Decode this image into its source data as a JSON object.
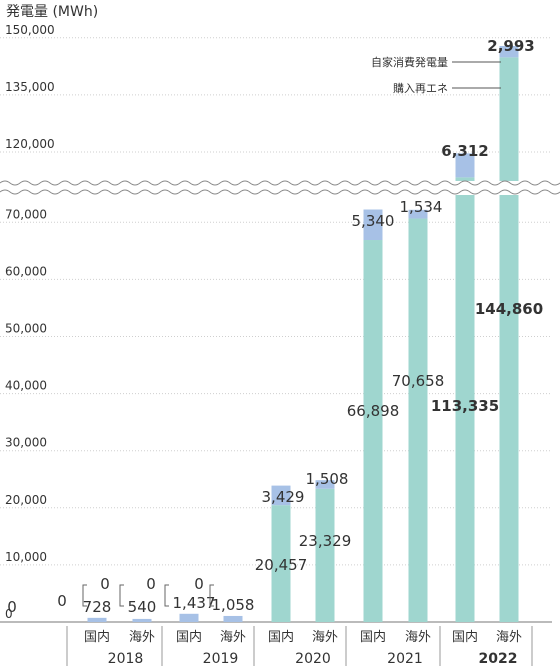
{
  "chart_data": {
    "type": "bar",
    "stacked": true,
    "broken_y_axis": true,
    "ylabel": "発電量 (MWh)",
    "y_ticks": [
      "0",
      "10,000",
      "20,000",
      "30,000",
      "40,000",
      "50,000",
      "60,000",
      "70,000",
      "120,000",
      "135,000",
      "150,000"
    ],
    "colors": {
      "purchased": "#9fd6cf",
      "self": "#a7c1e6"
    },
    "legend": [
      {
        "key": "self",
        "label": "自家消費発電量"
      },
      {
        "key": "purchased",
        "label": "購入再エネ"
      }
    ],
    "categories": [
      {
        "year": "2018",
        "sub": "国内",
        "purchased": 0,
        "self": 728,
        "purchased_label": "0",
        "self_label": "728",
        "bold": false
      },
      {
        "year": "2018",
        "sub": "海外",
        "purchased": 0,
        "self": 540,
        "purchased_label": "0",
        "self_label": "540",
        "bold": false
      },
      {
        "year": "2019",
        "sub": "国内",
        "purchased": 0,
        "self": 1437,
        "purchased_label": "0",
        "self_label": "1,437",
        "bold": false
      },
      {
        "year": "2019",
        "sub": "海外",
        "purchased": 0,
        "self": 1058,
        "purchased_label": "",
        "self_label": "1,058",
        "bold": false
      },
      {
        "year": "2020",
        "sub": "国内",
        "purchased": 20457,
        "self": 3429,
        "purchased_label": "20,457",
        "self_label": "3,429",
        "bold": false
      },
      {
        "year": "2020",
        "sub": "海外",
        "purchased": 23329,
        "self": 1508,
        "purchased_label": "23,329",
        "self_label": "1,508",
        "bold": false
      },
      {
        "year": "2021",
        "sub": "国内",
        "purchased": 66898,
        "self": 5340,
        "purchased_label": "66,898",
        "self_label": "5,340",
        "bold": false
      },
      {
        "year": "2021",
        "sub": "海外",
        "purchased": 70658,
        "self": 1534,
        "purchased_label": "70,658",
        "self_label": "1,534",
        "bold": false
      },
      {
        "year": "2022",
        "sub": "国内",
        "purchased": 113335,
        "self": 6312,
        "purchased_label": "113,335",
        "self_label": "6,312",
        "bold": true
      },
      {
        "year": "2022",
        "sub": "海外",
        "purchased": 144860,
        "self": 2993,
        "purchased_label": "144,860",
        "self_label": "2,993",
        "bold": true
      }
    ],
    "years": [
      {
        "label": "2018",
        "bold": false
      },
      {
        "label": "2019",
        "bold": false
      },
      {
        "label": "2020",
        "bold": false
      },
      {
        "label": "2021",
        "bold": false
      },
      {
        "label": "2022",
        "bold": true
      }
    ],
    "first_zero_label": "0"
  }
}
